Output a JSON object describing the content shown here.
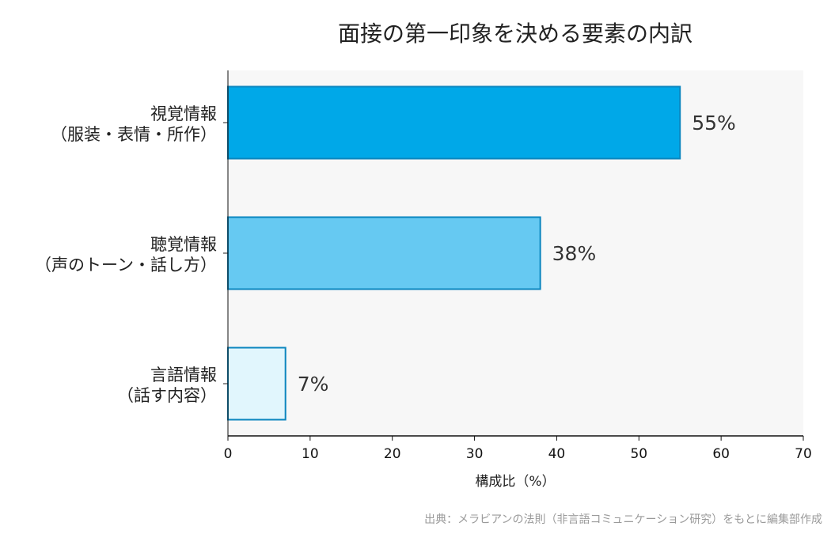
{
  "chart_data": {
    "type": "bar",
    "orientation": "horizontal",
    "title": "面接の第一印象を決める要素の内訳",
    "categories": [
      [
        "視覚情報",
        "（服装・表情・所作）"
      ],
      [
        "聴覚情報",
        "（声のトーン・話し方）"
      ],
      [
        "言語情報",
        "（話す内容）"
      ]
    ],
    "values": [
      55,
      38,
      7
    ],
    "value_labels": [
      "55%",
      "38%",
      "7%"
    ],
    "bar_colors": [
      "#00a8e8",
      "#66c9f2",
      "#e1f6fd"
    ],
    "bar_edge_color": "#0b86bf",
    "plot_background": "#f7f7f7",
    "xlabel": "構成比（%）",
    "ylabel": "",
    "xlim": [
      0,
      70
    ],
    "xticks": [
      "0",
      "10",
      "20",
      "30",
      "40",
      "50",
      "60",
      "70"
    ],
    "grid": false,
    "legend": "none"
  },
  "source_note": "出典：メラビアンの法則（非言語コミュニケーション研究）をもとに編集部作成"
}
